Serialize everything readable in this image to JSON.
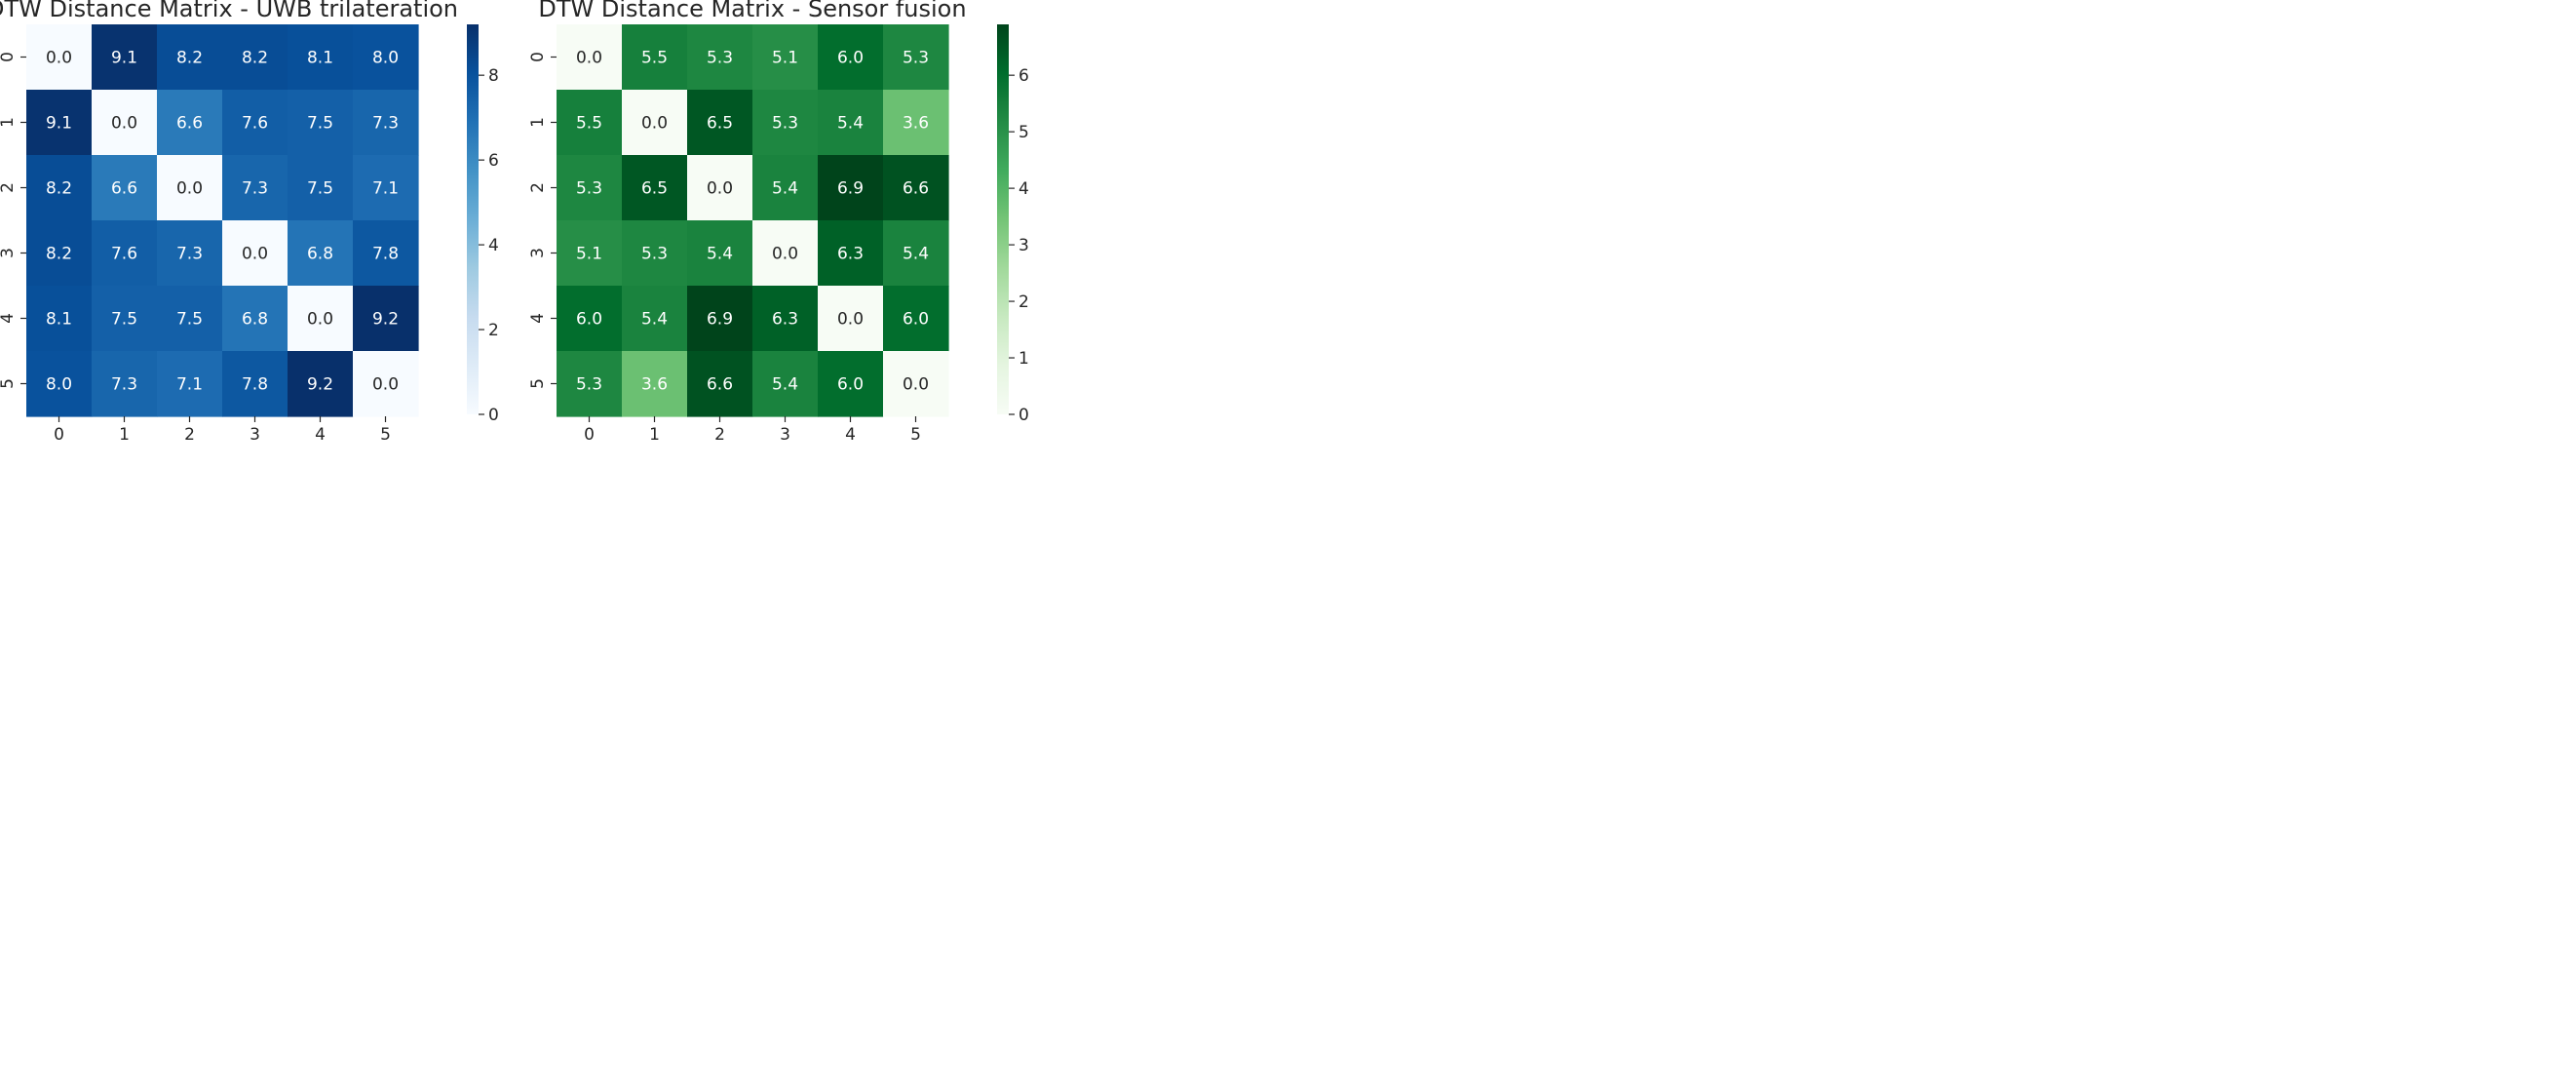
{
  "chart_data": [
    {
      "type": "heatmap",
      "title": "DTW Distance Matrix - UWB trilateration",
      "x_tick_labels": [
        "0",
        "1",
        "2",
        "3",
        "4",
        "5"
      ],
      "y_tick_labels": [
        "0",
        "1",
        "2",
        "3",
        "4",
        "5"
      ],
      "values": [
        [
          0.0,
          9.1,
          8.2,
          8.2,
          8.1,
          8.0
        ],
        [
          9.1,
          0.0,
          6.6,
          7.6,
          7.5,
          7.3
        ],
        [
          8.2,
          6.6,
          0.0,
          7.3,
          7.5,
          7.1
        ],
        [
          8.2,
          7.6,
          7.3,
          0.0,
          6.8,
          7.8
        ],
        [
          8.1,
          7.5,
          7.5,
          6.8,
          0.0,
          9.2
        ],
        [
          8.0,
          7.3,
          7.1,
          7.8,
          9.2,
          0.0
        ]
      ],
      "annotations": [
        [
          "0.0",
          "9.1",
          "8.2",
          "8.2",
          "8.1",
          "8.0"
        ],
        [
          "9.1",
          "0.0",
          "6.6",
          "7.6",
          "7.5",
          "7.3"
        ],
        [
          "8.2",
          "6.6",
          "0.0",
          "7.3",
          "7.5",
          "7.1"
        ],
        [
          "8.2",
          "7.6",
          "7.3",
          "0.0",
          "6.8",
          "7.8"
        ],
        [
          "8.1",
          "7.5",
          "7.5",
          "6.8",
          "0.0",
          "9.2"
        ],
        [
          "8.0",
          "7.3",
          "7.1",
          "7.8",
          "9.2",
          "0.0"
        ]
      ],
      "colormap": "Blues",
      "color_stops": [
        "#f7fbff",
        "#deebf7",
        "#c6dbef",
        "#9ecae1",
        "#6baed6",
        "#4292c6",
        "#2171b5",
        "#08519c",
        "#08306b"
      ],
      "vmin": 0,
      "vmax": 9.2,
      "colorbar_ticks": [
        0,
        2,
        4,
        6,
        8
      ],
      "colorbar_tick_labels": [
        "0",
        "2",
        "4",
        "6",
        "8"
      ]
    },
    {
      "type": "heatmap",
      "title": "DTW Distance Matrix - Sensor fusion",
      "x_tick_labels": [
        "0",
        "1",
        "2",
        "3",
        "4",
        "5"
      ],
      "y_tick_labels": [
        "0",
        "1",
        "2",
        "3",
        "4",
        "5"
      ],
      "values": [
        [
          0.0,
          5.5,
          5.3,
          5.1,
          6.0,
          5.3
        ],
        [
          5.5,
          0.0,
          6.5,
          5.3,
          5.4,
          3.6
        ],
        [
          5.3,
          6.5,
          0.0,
          5.4,
          6.9,
          6.6
        ],
        [
          5.1,
          5.3,
          5.4,
          0.0,
          6.3,
          5.4
        ],
        [
          6.0,
          5.4,
          6.9,
          6.3,
          0.0,
          6.0
        ],
        [
          5.3,
          3.6,
          6.6,
          5.4,
          6.0,
          0.0
        ]
      ],
      "annotations": [
        [
          "0.0",
          "5.5",
          "5.3",
          "5.1",
          "6.0",
          "5.3"
        ],
        [
          "5.5",
          "0.0",
          "6.5",
          "5.3",
          "5.4",
          "3.6"
        ],
        [
          "5.3",
          "6.5",
          "0.0",
          "5.4",
          "6.9",
          "6.6"
        ],
        [
          "5.1",
          "5.3",
          "5.4",
          "0.0",
          "6.3",
          "5.4"
        ],
        [
          "6.0",
          "5.4",
          "6.9",
          "6.3",
          "0.0",
          "6.0"
        ],
        [
          "5.3",
          "3.6",
          "6.6",
          "5.4",
          "6.0",
          "0.0"
        ]
      ],
      "colormap": "Greens",
      "color_stops": [
        "#f7fcf5",
        "#e5f5e0",
        "#c7e9c0",
        "#a1d99b",
        "#74c476",
        "#41ab5d",
        "#238b45",
        "#006d2c",
        "#00441b"
      ],
      "vmin": 0,
      "vmax": 6.9,
      "colorbar_ticks": [
        0,
        1,
        2,
        3,
        4,
        5,
        6
      ],
      "colorbar_tick_labels": [
        "0",
        "1",
        "2",
        "3",
        "4",
        "5",
        "6"
      ]
    }
  ]
}
